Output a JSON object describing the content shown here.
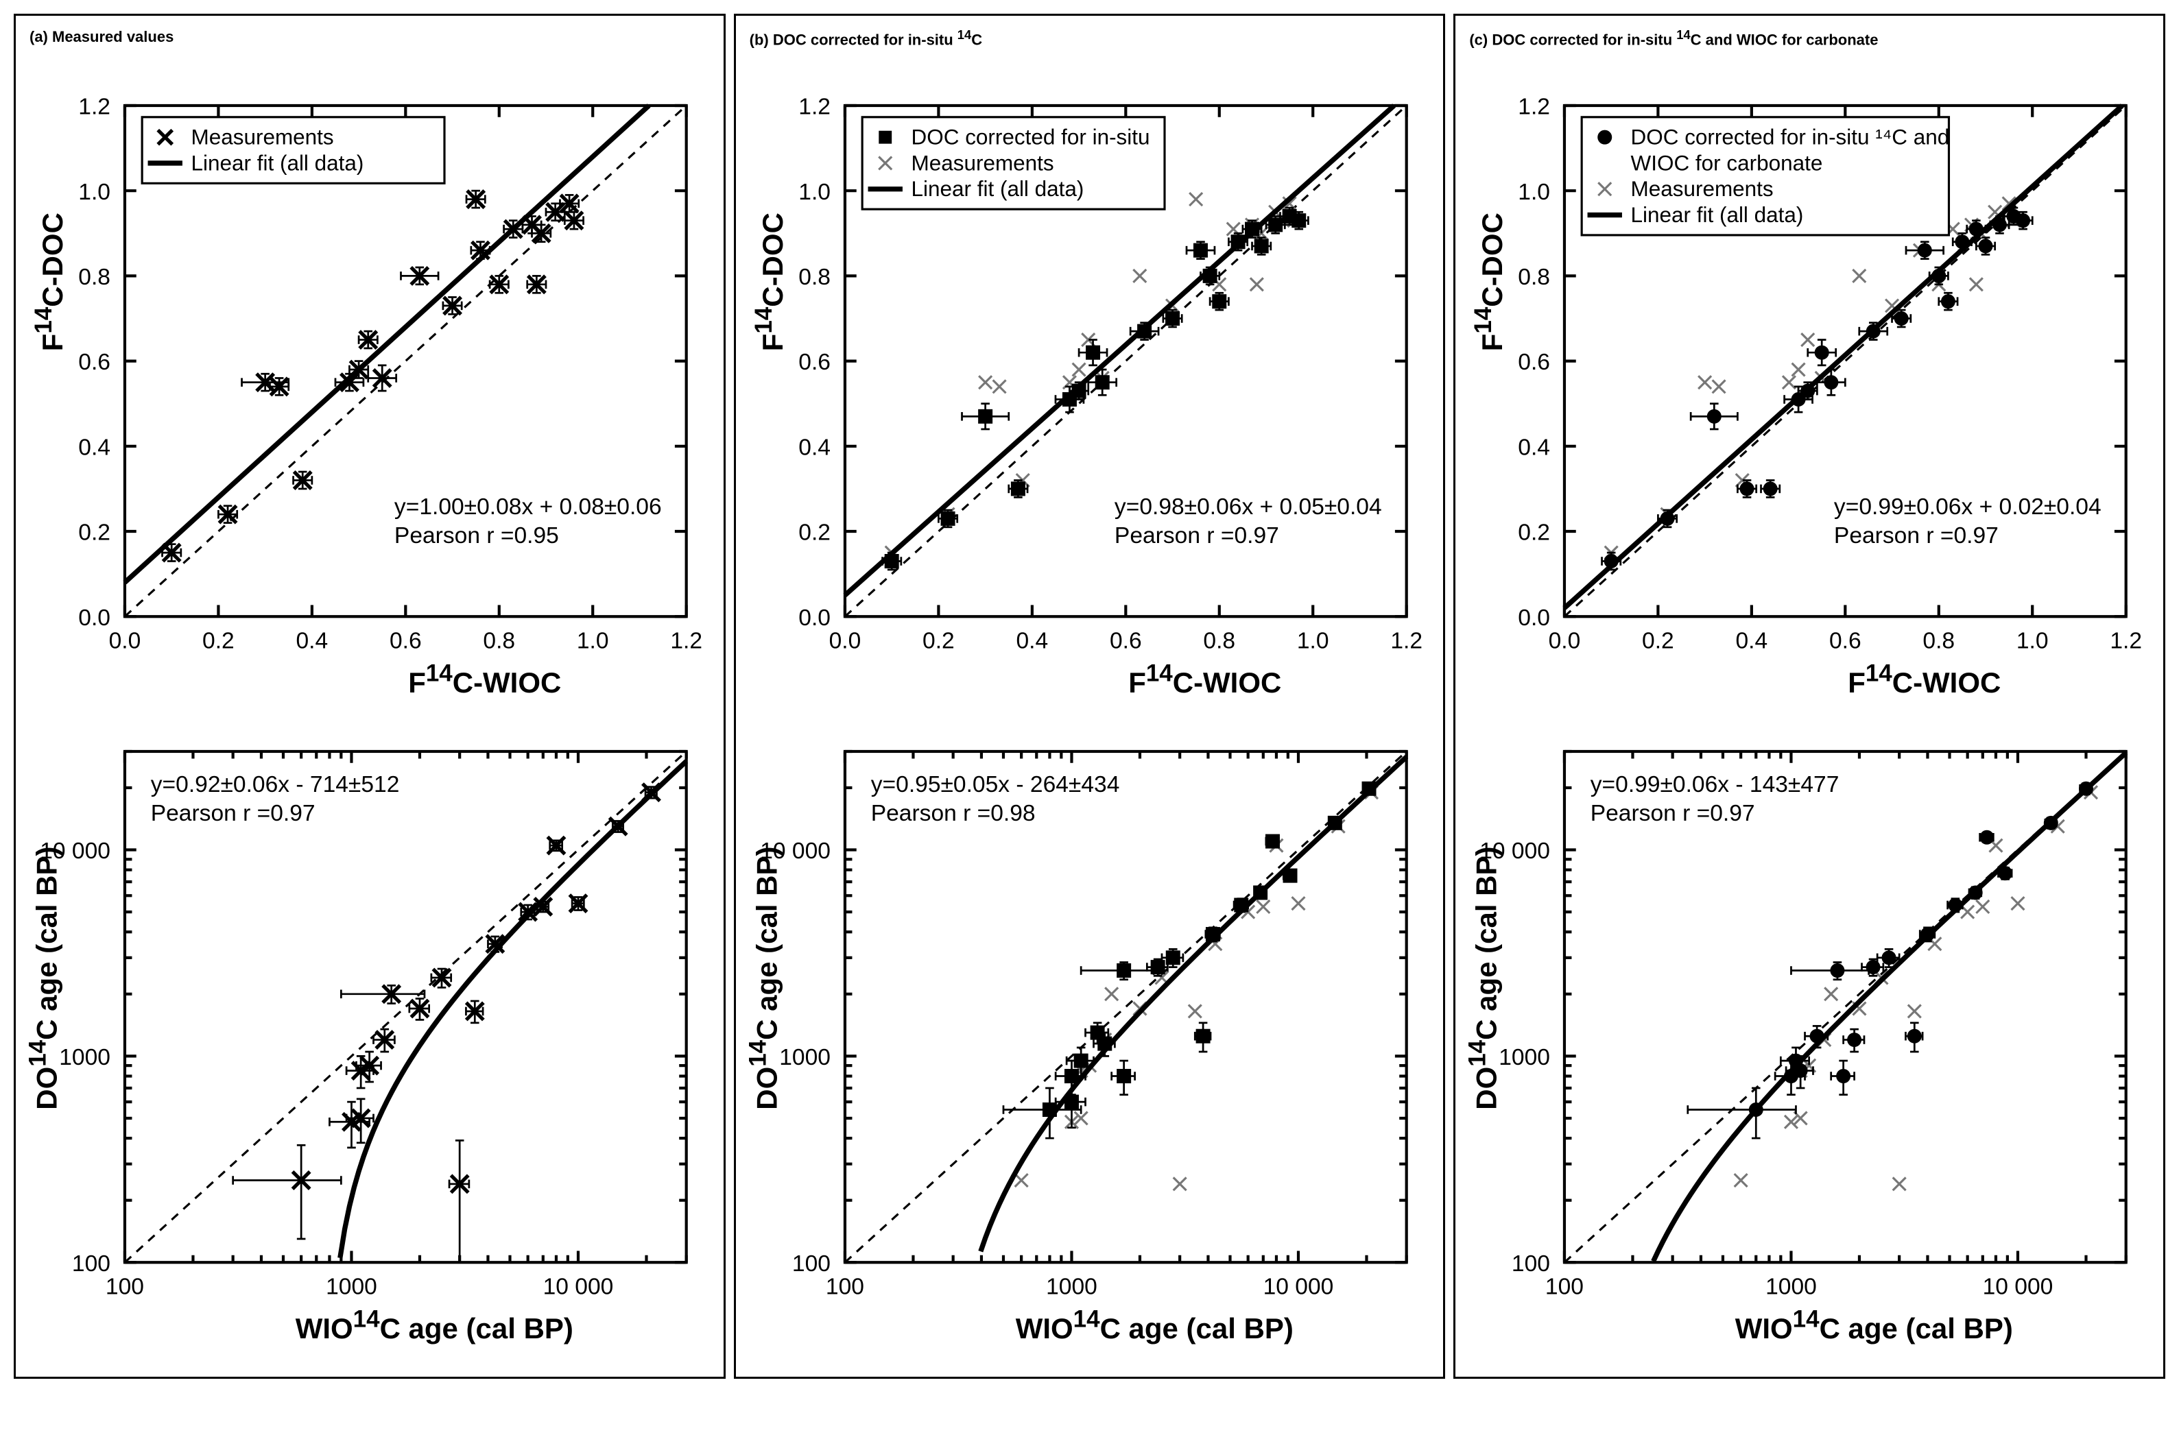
{
  "panels": {
    "a": {
      "title_html": "(a) Measured values",
      "legend": [
        "Measurements",
        "Linear fit (all data)"
      ],
      "legend_kind": [
        "x",
        "line"
      ]
    },
    "b": {
      "title_html": "(b) DOC corrected for  in-situ <sup>14</sup>C",
      "legend": [
        "DOC corrected for in-situ",
        "Measurements",
        "Linear fit (all data)"
      ],
      "legend_kind": [
        "sq",
        "xg",
        "line"
      ]
    },
    "c": {
      "title_html": "(c) DOC corrected for in-situ <sup>14</sup>C and WIOC for carbonate",
      "legend": [
        "DOC corrected for in-situ ¹⁴C and WIOC for carbonate",
        "Measurements",
        "Linear fit (all data)"
      ],
      "legend_kind": [
        "ci",
        "xg",
        "line"
      ]
    }
  },
  "linear_axes": {
    "xlabel_html": "F<sup>14</sup>C-WIOC",
    "ylabel_html": "F<sup>14</sup>C-DOC",
    "xlim": [
      0.0,
      1.2
    ],
    "ylim": [
      0.0,
      1.2
    ],
    "tick_step": 0.2
  },
  "log_axes": {
    "xlabel_html": "WIO<sup>14</sup>C age (cal BP)",
    "ylabel_html": "DO<sup>14</sup>C age (cal BP)",
    "xlim": [
      100,
      30000
    ],
    "ylim": [
      100,
      30000
    ],
    "major_ticks": [
      100,
      1000,
      10000
    ],
    "major_labels": [
      "100",
      "1000",
      "10 000"
    ]
  },
  "fits": {
    "a": {
      "lin_eq": "y=1.00±0.08x + 0.08±0.06",
      "lin_r": "Pearson r =0.95",
      "log_eq": "y=0.92±0.06x - 714±512",
      "log_r": "Pearson r =0.97",
      "lin_slope": 1.0,
      "lin_int": 0.08,
      "age_slope": 0.92,
      "age_int": -714
    },
    "b": {
      "lin_eq": "y=0.98±0.06x + 0.05±0.04",
      "lin_r": "Pearson r =0.97",
      "log_eq": "y=0.95±0.05x - 264±434",
      "log_r": "Pearson r =0.98",
      "lin_slope": 0.98,
      "lin_int": 0.05,
      "age_slope": 0.95,
      "age_int": -264
    },
    "c": {
      "lin_eq": "y=0.99±0.06x + 0.02±0.04",
      "lin_r": "Pearson r =0.97",
      "log_eq": "y=0.99±0.06x - 143±477",
      "log_r": "Pearson r =0.97",
      "lin_slope": 0.99,
      "lin_int": 0.02,
      "age_slope": 0.99,
      "age_int": -143
    }
  },
  "data_measurements": {
    "lin": [
      {
        "x": 0.1,
        "y": 0.15,
        "ex": 0.02,
        "ey": 0.02
      },
      {
        "x": 0.22,
        "y": 0.24,
        "ex": 0.02,
        "ey": 0.02
      },
      {
        "x": 0.3,
        "y": 0.55,
        "ex": 0.05,
        "ey": 0.02
      },
      {
        "x": 0.33,
        "y": 0.54,
        "ex": 0.02,
        "ey": 0.02
      },
      {
        "x": 0.38,
        "y": 0.32,
        "ex": 0.02,
        "ey": 0.02
      },
      {
        "x": 0.48,
        "y": 0.55,
        "ex": 0.03,
        "ey": 0.02
      },
      {
        "x": 0.5,
        "y": 0.58,
        "ex": 0.02,
        "ey": 0.02
      },
      {
        "x": 0.52,
        "y": 0.65,
        "ex": 0.02,
        "ey": 0.02
      },
      {
        "x": 0.55,
        "y": 0.56,
        "ex": 0.03,
        "ey": 0.03
      },
      {
        "x": 0.63,
        "y": 0.8,
        "ex": 0.04,
        "ey": 0.02
      },
      {
        "x": 0.7,
        "y": 0.73,
        "ex": 0.02,
        "ey": 0.02
      },
      {
        "x": 0.75,
        "y": 0.98,
        "ex": 0.02,
        "ey": 0.02
      },
      {
        "x": 0.76,
        "y": 0.86,
        "ex": 0.02,
        "ey": 0.02
      },
      {
        "x": 0.8,
        "y": 0.78,
        "ex": 0.02,
        "ey": 0.02
      },
      {
        "x": 0.83,
        "y": 0.91,
        "ex": 0.02,
        "ey": 0.02
      },
      {
        "x": 0.87,
        "y": 0.92,
        "ex": 0.02,
        "ey": 0.02
      },
      {
        "x": 0.89,
        "y": 0.9,
        "ex": 0.02,
        "ey": 0.02
      },
      {
        "x": 0.88,
        "y": 0.78,
        "ex": 0.02,
        "ey": 0.02
      },
      {
        "x": 0.92,
        "y": 0.95,
        "ex": 0.02,
        "ey": 0.02
      },
      {
        "x": 0.95,
        "y": 0.97,
        "ex": 0.02,
        "ey": 0.02
      },
      {
        "x": 0.96,
        "y": 0.93,
        "ex": 0.02,
        "ey": 0.02
      }
    ],
    "age": [
      {
        "x": 600,
        "y": 250,
        "ex": 300,
        "ey": 120
      },
      {
        "x": 1000,
        "y": 480,
        "ex": 200,
        "ey": 120
      },
      {
        "x": 1100,
        "y": 500,
        "ex": 150,
        "ey": 120
      },
      {
        "x": 1100,
        "y": 850,
        "ex": 150,
        "ey": 150
      },
      {
        "x": 1200,
        "y": 900,
        "ex": 150,
        "ey": 150
      },
      {
        "x": 1400,
        "y": 1200,
        "ex": 150,
        "ey": 150
      },
      {
        "x": 1500,
        "y": 2000,
        "ex": 600,
        "ey": 200
      },
      {
        "x": 2000,
        "y": 1700,
        "ex": 200,
        "ey": 200
      },
      {
        "x": 2500,
        "y": 2400,
        "ex": 250,
        "ey": 250
      },
      {
        "x": 3000,
        "y": 240,
        "ex": 300,
        "ey": 150
      },
      {
        "x": 3500,
        "y": 1650,
        "ex": 300,
        "ey": 200
      },
      {
        "x": 4300,
        "y": 3500,
        "ex": 300,
        "ey": 300
      },
      {
        "x": 6000,
        "y": 5000,
        "ex": 400,
        "ey": 400
      },
      {
        "x": 7000,
        "y": 5300,
        "ex": 400,
        "ey": 300
      },
      {
        "x": 8000,
        "y": 10500,
        "ex": 500,
        "ey": 600
      },
      {
        "x": 10000,
        "y": 5500,
        "ex": 600,
        "ey": 400
      },
      {
        "x": 15000,
        "y": 13000,
        "ex": 800,
        "ey": 800
      },
      {
        "x": 21000,
        "y": 19000,
        "ex": 1200,
        "ey": 1200
      }
    ]
  },
  "data_corrected_b": {
    "lin": [
      {
        "x": 0.1,
        "y": 0.13,
        "ex": 0.02,
        "ey": 0.02
      },
      {
        "x": 0.22,
        "y": 0.23,
        "ex": 0.02,
        "ey": 0.02
      },
      {
        "x": 0.3,
        "y": 0.47,
        "ex": 0.05,
        "ey": 0.03
      },
      {
        "x": 0.37,
        "y": 0.3,
        "ex": 0.02,
        "ey": 0.02
      },
      {
        "x": 0.48,
        "y": 0.51,
        "ex": 0.03,
        "ey": 0.03
      },
      {
        "x": 0.5,
        "y": 0.53,
        "ex": 0.02,
        "ey": 0.02
      },
      {
        "x": 0.53,
        "y": 0.62,
        "ex": 0.03,
        "ey": 0.03
      },
      {
        "x": 0.55,
        "y": 0.55,
        "ex": 0.03,
        "ey": 0.03
      },
      {
        "x": 0.64,
        "y": 0.67,
        "ex": 0.03,
        "ey": 0.02
      },
      {
        "x": 0.7,
        "y": 0.7,
        "ex": 0.02,
        "ey": 0.02
      },
      {
        "x": 0.76,
        "y": 0.86,
        "ex": 0.03,
        "ey": 0.02
      },
      {
        "x": 0.78,
        "y": 0.8,
        "ex": 0.02,
        "ey": 0.02
      },
      {
        "x": 0.8,
        "y": 0.74,
        "ex": 0.02,
        "ey": 0.02
      },
      {
        "x": 0.84,
        "y": 0.88,
        "ex": 0.02,
        "ey": 0.02
      },
      {
        "x": 0.87,
        "y": 0.91,
        "ex": 0.02,
        "ey": 0.02
      },
      {
        "x": 0.89,
        "y": 0.87,
        "ex": 0.02,
        "ey": 0.02
      },
      {
        "x": 0.92,
        "y": 0.92,
        "ex": 0.02,
        "ey": 0.02
      },
      {
        "x": 0.95,
        "y": 0.94,
        "ex": 0.02,
        "ey": 0.02
      },
      {
        "x": 0.97,
        "y": 0.93,
        "ex": 0.02,
        "ey": 0.02
      }
    ],
    "age": [
      {
        "x": 800,
        "y": 550,
        "ex": 300,
        "ey": 150
      },
      {
        "x": 1000,
        "y": 600,
        "ex": 150,
        "ey": 150
      },
      {
        "x": 1000,
        "y": 800,
        "ex": 150,
        "ey": 150
      },
      {
        "x": 1100,
        "y": 950,
        "ex": 150,
        "ey": 150
      },
      {
        "x": 1300,
        "y": 1300,
        "ex": 150,
        "ey": 150
      },
      {
        "x": 1400,
        "y": 1150,
        "ex": 150,
        "ey": 150
      },
      {
        "x": 1700,
        "y": 2600,
        "ex": 600,
        "ey": 250
      },
      {
        "x": 1700,
        "y": 800,
        "ex": 200,
        "ey": 150
      },
      {
        "x": 2400,
        "y": 2700,
        "ex": 250,
        "ey": 250
      },
      {
        "x": 2800,
        "y": 3000,
        "ex": 300,
        "ey": 300
      },
      {
        "x": 3800,
        "y": 1250,
        "ex": 300,
        "ey": 200
      },
      {
        "x": 4200,
        "y": 3900,
        "ex": 300,
        "ey": 300
      },
      {
        "x": 5600,
        "y": 5400,
        "ex": 400,
        "ey": 400
      },
      {
        "x": 6800,
        "y": 6200,
        "ex": 400,
        "ey": 400
      },
      {
        "x": 7700,
        "y": 11000,
        "ex": 500,
        "ey": 600
      },
      {
        "x": 9200,
        "y": 7500,
        "ex": 600,
        "ey": 500
      },
      {
        "x": 14500,
        "y": 13500,
        "ex": 800,
        "ey": 800
      },
      {
        "x": 20500,
        "y": 19800,
        "ex": 1200,
        "ey": 1200
      }
    ]
  },
  "data_corrected_c": {
    "lin": [
      {
        "x": 0.1,
        "y": 0.13,
        "ex": 0.02,
        "ey": 0.02
      },
      {
        "x": 0.22,
        "y": 0.23,
        "ex": 0.02,
        "ey": 0.02
      },
      {
        "x": 0.32,
        "y": 0.47,
        "ex": 0.05,
        "ey": 0.03
      },
      {
        "x": 0.39,
        "y": 0.3,
        "ex": 0.02,
        "ey": 0.02
      },
      {
        "x": 0.44,
        "y": 0.3,
        "ex": 0.02,
        "ey": 0.02
      },
      {
        "x": 0.5,
        "y": 0.51,
        "ex": 0.03,
        "ey": 0.03
      },
      {
        "x": 0.52,
        "y": 0.53,
        "ex": 0.02,
        "ey": 0.02
      },
      {
        "x": 0.55,
        "y": 0.62,
        "ex": 0.03,
        "ey": 0.03
      },
      {
        "x": 0.57,
        "y": 0.55,
        "ex": 0.03,
        "ey": 0.03
      },
      {
        "x": 0.66,
        "y": 0.67,
        "ex": 0.03,
        "ey": 0.02
      },
      {
        "x": 0.72,
        "y": 0.7,
        "ex": 0.02,
        "ey": 0.02
      },
      {
        "x": 0.77,
        "y": 0.86,
        "ex": 0.04,
        "ey": 0.02
      },
      {
        "x": 0.8,
        "y": 0.8,
        "ex": 0.02,
        "ey": 0.02
      },
      {
        "x": 0.82,
        "y": 0.74,
        "ex": 0.02,
        "ey": 0.02
      },
      {
        "x": 0.85,
        "y": 0.88,
        "ex": 0.02,
        "ey": 0.02
      },
      {
        "x": 0.88,
        "y": 0.91,
        "ex": 0.02,
        "ey": 0.02
      },
      {
        "x": 0.9,
        "y": 0.87,
        "ex": 0.02,
        "ey": 0.02
      },
      {
        "x": 0.93,
        "y": 0.92,
        "ex": 0.02,
        "ey": 0.02
      },
      {
        "x": 0.96,
        "y": 0.94,
        "ex": 0.02,
        "ey": 0.02
      },
      {
        "x": 0.98,
        "y": 0.93,
        "ex": 0.02,
        "ey": 0.02
      }
    ],
    "age": [
      {
        "x": 700,
        "y": 550,
        "ex": 350,
        "ey": 150
      },
      {
        "x": 1000,
        "y": 800,
        "ex": 150,
        "ey": 150
      },
      {
        "x": 1050,
        "y": 950,
        "ex": 150,
        "ey": 150
      },
      {
        "x": 1100,
        "y": 850,
        "ex": 150,
        "ey": 150
      },
      {
        "x": 1300,
        "y": 1250,
        "ex": 150,
        "ey": 150
      },
      {
        "x": 1600,
        "y": 2600,
        "ex": 600,
        "ey": 250
      },
      {
        "x": 1700,
        "y": 800,
        "ex": 200,
        "ey": 150
      },
      {
        "x": 1900,
        "y": 1200,
        "ex": 200,
        "ey": 150
      },
      {
        "x": 2300,
        "y": 2700,
        "ex": 250,
        "ey": 250
      },
      {
        "x": 2700,
        "y": 3000,
        "ex": 300,
        "ey": 300
      },
      {
        "x": 3500,
        "y": 1250,
        "ex": 300,
        "ey": 200
      },
      {
        "x": 4000,
        "y": 3900,
        "ex": 300,
        "ey": 300
      },
      {
        "x": 5300,
        "y": 5400,
        "ex": 400,
        "ey": 400
      },
      {
        "x": 6500,
        "y": 6200,
        "ex": 400,
        "ey": 400
      },
      {
        "x": 7300,
        "y": 11500,
        "ex": 500,
        "ey": 600
      },
      {
        "x": 8800,
        "y": 7700,
        "ex": 600,
        "ey": 500
      },
      {
        "x": 14000,
        "y": 13500,
        "ex": 800,
        "ey": 800
      },
      {
        "x": 20000,
        "y": 19800,
        "ex": 1200,
        "ey": 1200
      }
    ]
  },
  "colors": {
    "fg": "#000000",
    "bg": "#ffffff",
    "grey": "#777777"
  }
}
